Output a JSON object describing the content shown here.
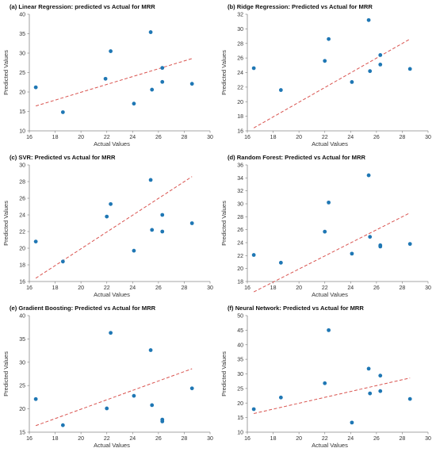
{
  "chart_data": [
    {
      "type": "scatter",
      "title": "(a)   Linear Regression: predicted vs Actual for MRR",
      "xlabel": "Actual Values",
      "ylabel": "Predicted Values",
      "xlim": [
        16,
        30
      ],
      "ylim": [
        10,
        40
      ],
      "xticks": [
        16,
        18,
        20,
        22,
        24,
        26,
        28,
        30
      ],
      "yticks": [
        10,
        15,
        20,
        25,
        30,
        35,
        40
      ],
      "points": [
        [
          16.5,
          21.2
        ],
        [
          18.6,
          14.8
        ],
        [
          21.9,
          23.4
        ],
        [
          22.3,
          30.5
        ],
        [
          24.1,
          17.0
        ],
        [
          25.4,
          35.4
        ],
        [
          25.5,
          20.6
        ],
        [
          26.3,
          26.2
        ],
        [
          26.3,
          22.6
        ],
        [
          28.6,
          22.1
        ]
      ],
      "fit_line": [
        [
          16.5,
          16.4
        ],
        [
          28.6,
          28.6
        ]
      ],
      "grid": false
    },
    {
      "type": "scatter",
      "title": "(b)   Ridge Regression: Predicted vs Actual for MRR",
      "xlabel": "Actual Values",
      "ylabel": "Predicted Values",
      "xlim": [
        16,
        30
      ],
      "ylim": [
        16,
        32
      ],
      "xticks": [
        16,
        18,
        20,
        22,
        24,
        26,
        28,
        30
      ],
      "yticks": [
        16,
        18,
        20,
        22,
        24,
        26,
        28,
        30,
        32
      ],
      "points": [
        [
          16.5,
          24.6
        ],
        [
          18.6,
          21.6
        ],
        [
          22.0,
          25.6
        ],
        [
          22.3,
          28.6
        ],
        [
          24.1,
          22.7
        ],
        [
          25.4,
          31.2
        ],
        [
          25.5,
          24.2
        ],
        [
          26.3,
          26.4
        ],
        [
          26.3,
          25.1
        ],
        [
          28.6,
          24.5
        ]
      ],
      "fit_line": [
        [
          16.5,
          16.4
        ],
        [
          28.6,
          28.6
        ]
      ],
      "grid": false
    },
    {
      "type": "scatter",
      "title": "(c)   SVR: Predicted vs Actual for MRR",
      "xlabel": "Actual Values",
      "ylabel": "Predicted Values",
      "xlim": [
        16,
        30
      ],
      "ylim": [
        16,
        30
      ],
      "xticks": [
        16,
        18,
        20,
        22,
        24,
        26,
        28,
        30
      ],
      "yticks": [
        16,
        18,
        20,
        22,
        24,
        26,
        28,
        30
      ],
      "points": [
        [
          16.5,
          20.8
        ],
        [
          18.6,
          18.4
        ],
        [
          22.0,
          23.8
        ],
        [
          22.3,
          25.3
        ],
        [
          24.1,
          19.7
        ],
        [
          25.4,
          28.2
        ],
        [
          25.5,
          22.2
        ],
        [
          26.3,
          24.0
        ],
        [
          26.3,
          22.0
        ],
        [
          28.6,
          23.0
        ]
      ],
      "fit_line": [
        [
          16.5,
          16.4
        ],
        [
          28.6,
          28.6
        ]
      ],
      "grid": false
    },
    {
      "type": "scatter",
      "title": "(d)   Random Forest: Predicted vs Actual for MRR",
      "xlabel": "Actual Values",
      "ylabel": "Predicted Values",
      "xlim": [
        16,
        30
      ],
      "ylim": [
        18,
        36
      ],
      "xticks": [
        16,
        18,
        20,
        22,
        24,
        26,
        28,
        30
      ],
      "yticks": [
        18,
        20,
        22,
        24,
        26,
        28,
        30,
        32,
        34,
        36
      ],
      "points": [
        [
          16.5,
          22.1
        ],
        [
          18.6,
          20.9
        ],
        [
          22.0,
          25.7
        ],
        [
          22.3,
          30.2
        ],
        [
          24.1,
          22.3
        ],
        [
          25.4,
          34.4
        ],
        [
          25.5,
          24.9
        ],
        [
          26.3,
          23.6
        ],
        [
          26.3,
          23.4
        ],
        [
          28.6,
          23.8
        ]
      ],
      "fit_line": [
        [
          16.5,
          16.4
        ],
        [
          28.6,
          28.6
        ]
      ],
      "grid": false
    },
    {
      "type": "scatter",
      "title": "(e)   Gradient Boosting: Predicted vs Actual for MRR",
      "xlabel": "Actual Values",
      "ylabel": "Predicted Values",
      "xlim": [
        16,
        30
      ],
      "ylim": [
        15,
        40
      ],
      "xticks": [
        16,
        18,
        20,
        22,
        24,
        26,
        28,
        30
      ],
      "yticks": [
        15,
        20,
        25,
        30,
        35,
        40
      ],
      "points": [
        [
          16.5,
          22.1
        ],
        [
          18.6,
          16.5
        ],
        [
          22.0,
          20.1
        ],
        [
          22.3,
          36.3
        ],
        [
          24.1,
          22.8
        ],
        [
          25.4,
          32.6
        ],
        [
          25.5,
          20.8
        ],
        [
          26.3,
          17.7
        ],
        [
          26.3,
          17.3
        ],
        [
          28.6,
          24.4
        ]
      ],
      "fit_line": [
        [
          16.5,
          16.4
        ],
        [
          28.6,
          28.6
        ]
      ],
      "grid": false
    },
    {
      "type": "scatter",
      "title": "(f)   Neural Network: Predicted vs Actual for MRR",
      "xlabel": "Actual Values",
      "ylabel": "Predicted Values",
      "xlim": [
        16,
        30
      ],
      "ylim": [
        10,
        50
      ],
      "xticks": [
        16,
        18,
        20,
        22,
        24,
        26,
        28,
        30
      ],
      "yticks": [
        10,
        15,
        20,
        25,
        30,
        35,
        40,
        45,
        50
      ],
      "points": [
        [
          16.5,
          17.9
        ],
        [
          18.6,
          21.9
        ],
        [
          22.0,
          26.8
        ],
        [
          22.3,
          45.0
        ],
        [
          24.1,
          13.3
        ],
        [
          25.4,
          31.8
        ],
        [
          25.5,
          23.3
        ],
        [
          26.3,
          29.4
        ],
        [
          26.3,
          24.1
        ],
        [
          28.6,
          21.4
        ]
      ],
      "fit_line": [
        [
          16.5,
          16.4
        ],
        [
          28.6,
          28.6
        ]
      ],
      "grid": false
    }
  ],
  "colors": {
    "points": "#1f77b4",
    "fit_line": "#d9534f",
    "axis": "#888888"
  }
}
